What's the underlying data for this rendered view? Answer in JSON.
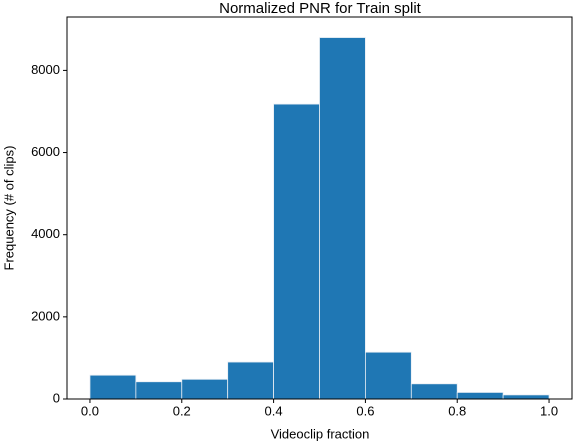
{
  "chart_data": {
    "type": "histogram",
    "title": "Normalized PNR for Train split",
    "x_label": "Videoclip fraction",
    "y_label": "Frequency (# of clips)",
    "bins": [
      0,
      0.1,
      0.2,
      0.3,
      0.4,
      0.5,
      0.6,
      0.7,
      0.8,
      0.9,
      1.0
    ],
    "values": [
      580,
      420,
      480,
      900,
      7180,
      8800,
      1140,
      370,
      160,
      100
    ],
    "color": "#1f77b4",
    "xlim": [
      -0.05,
      1.05
    ],
    "xticks": [
      {
        "value": 0,
        "label": "0.0"
      },
      {
        "value": 0.2,
        "label": "0.2"
      },
      {
        "value": 0.4,
        "label": "0.4"
      },
      {
        "value": 0.6,
        "label": "0.6"
      },
      {
        "value": 0.8,
        "label": "0.8"
      },
      {
        "value": 1.0,
        "label": "1.0"
      }
    ],
    "ylim": [
      0,
      9300
    ],
    "yticks": [
      0,
      2000,
      4000,
      6000,
      8000
    ]
  }
}
